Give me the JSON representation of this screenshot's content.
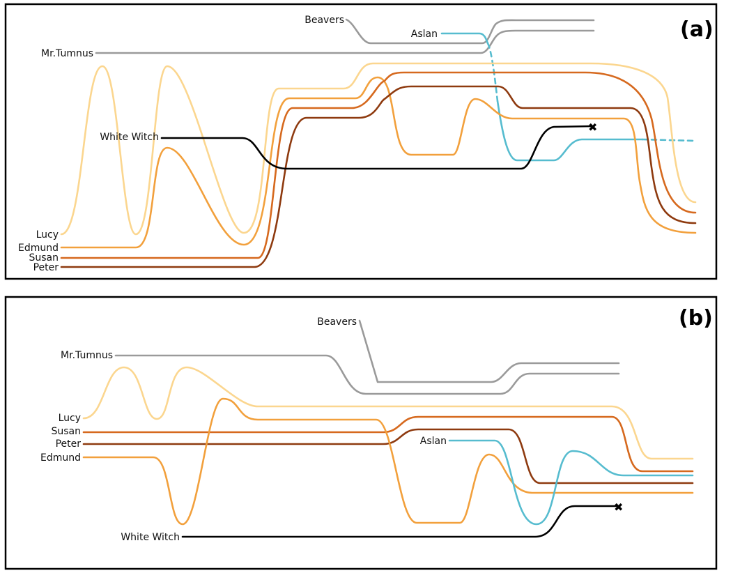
{
  "colors": {
    "Lucy": "#fbd68f",
    "Edmund": "#f2a03c",
    "Susan": "#d6691e",
    "Peter": "#8e3a0f",
    "Mr.Tumnus": "#9a9a9a",
    "Beavers": "#9a9a9a",
    "Aslan": "#56bccf",
    "White Witch": "#000000"
  },
  "panels": [
    {
      "tag": "(a)",
      "labels": {
        "Beavers": "Beavers",
        "Aslan": "Aslan",
        "Mr.Tumnus": "Mr.Tumnus",
        "White Witch": "White Witch",
        "Lucy": "Lucy",
        "Edmund": "Edmund",
        "Susan": "Susan",
        "Peter": "Peter"
      },
      "death_marker": "✖"
    },
    {
      "tag": "(b)",
      "labels": {
        "Beavers": "Beavers",
        "Mr.Tumnus": "Mr.Tumnus",
        "Lucy": "Lucy",
        "Susan": "Susan",
        "Peter": "Peter",
        "Edmund": "Edmund",
        "Aslan": "Aslan",
        "White Witch": "White Witch"
      },
      "death_marker": "✖"
    }
  ]
}
